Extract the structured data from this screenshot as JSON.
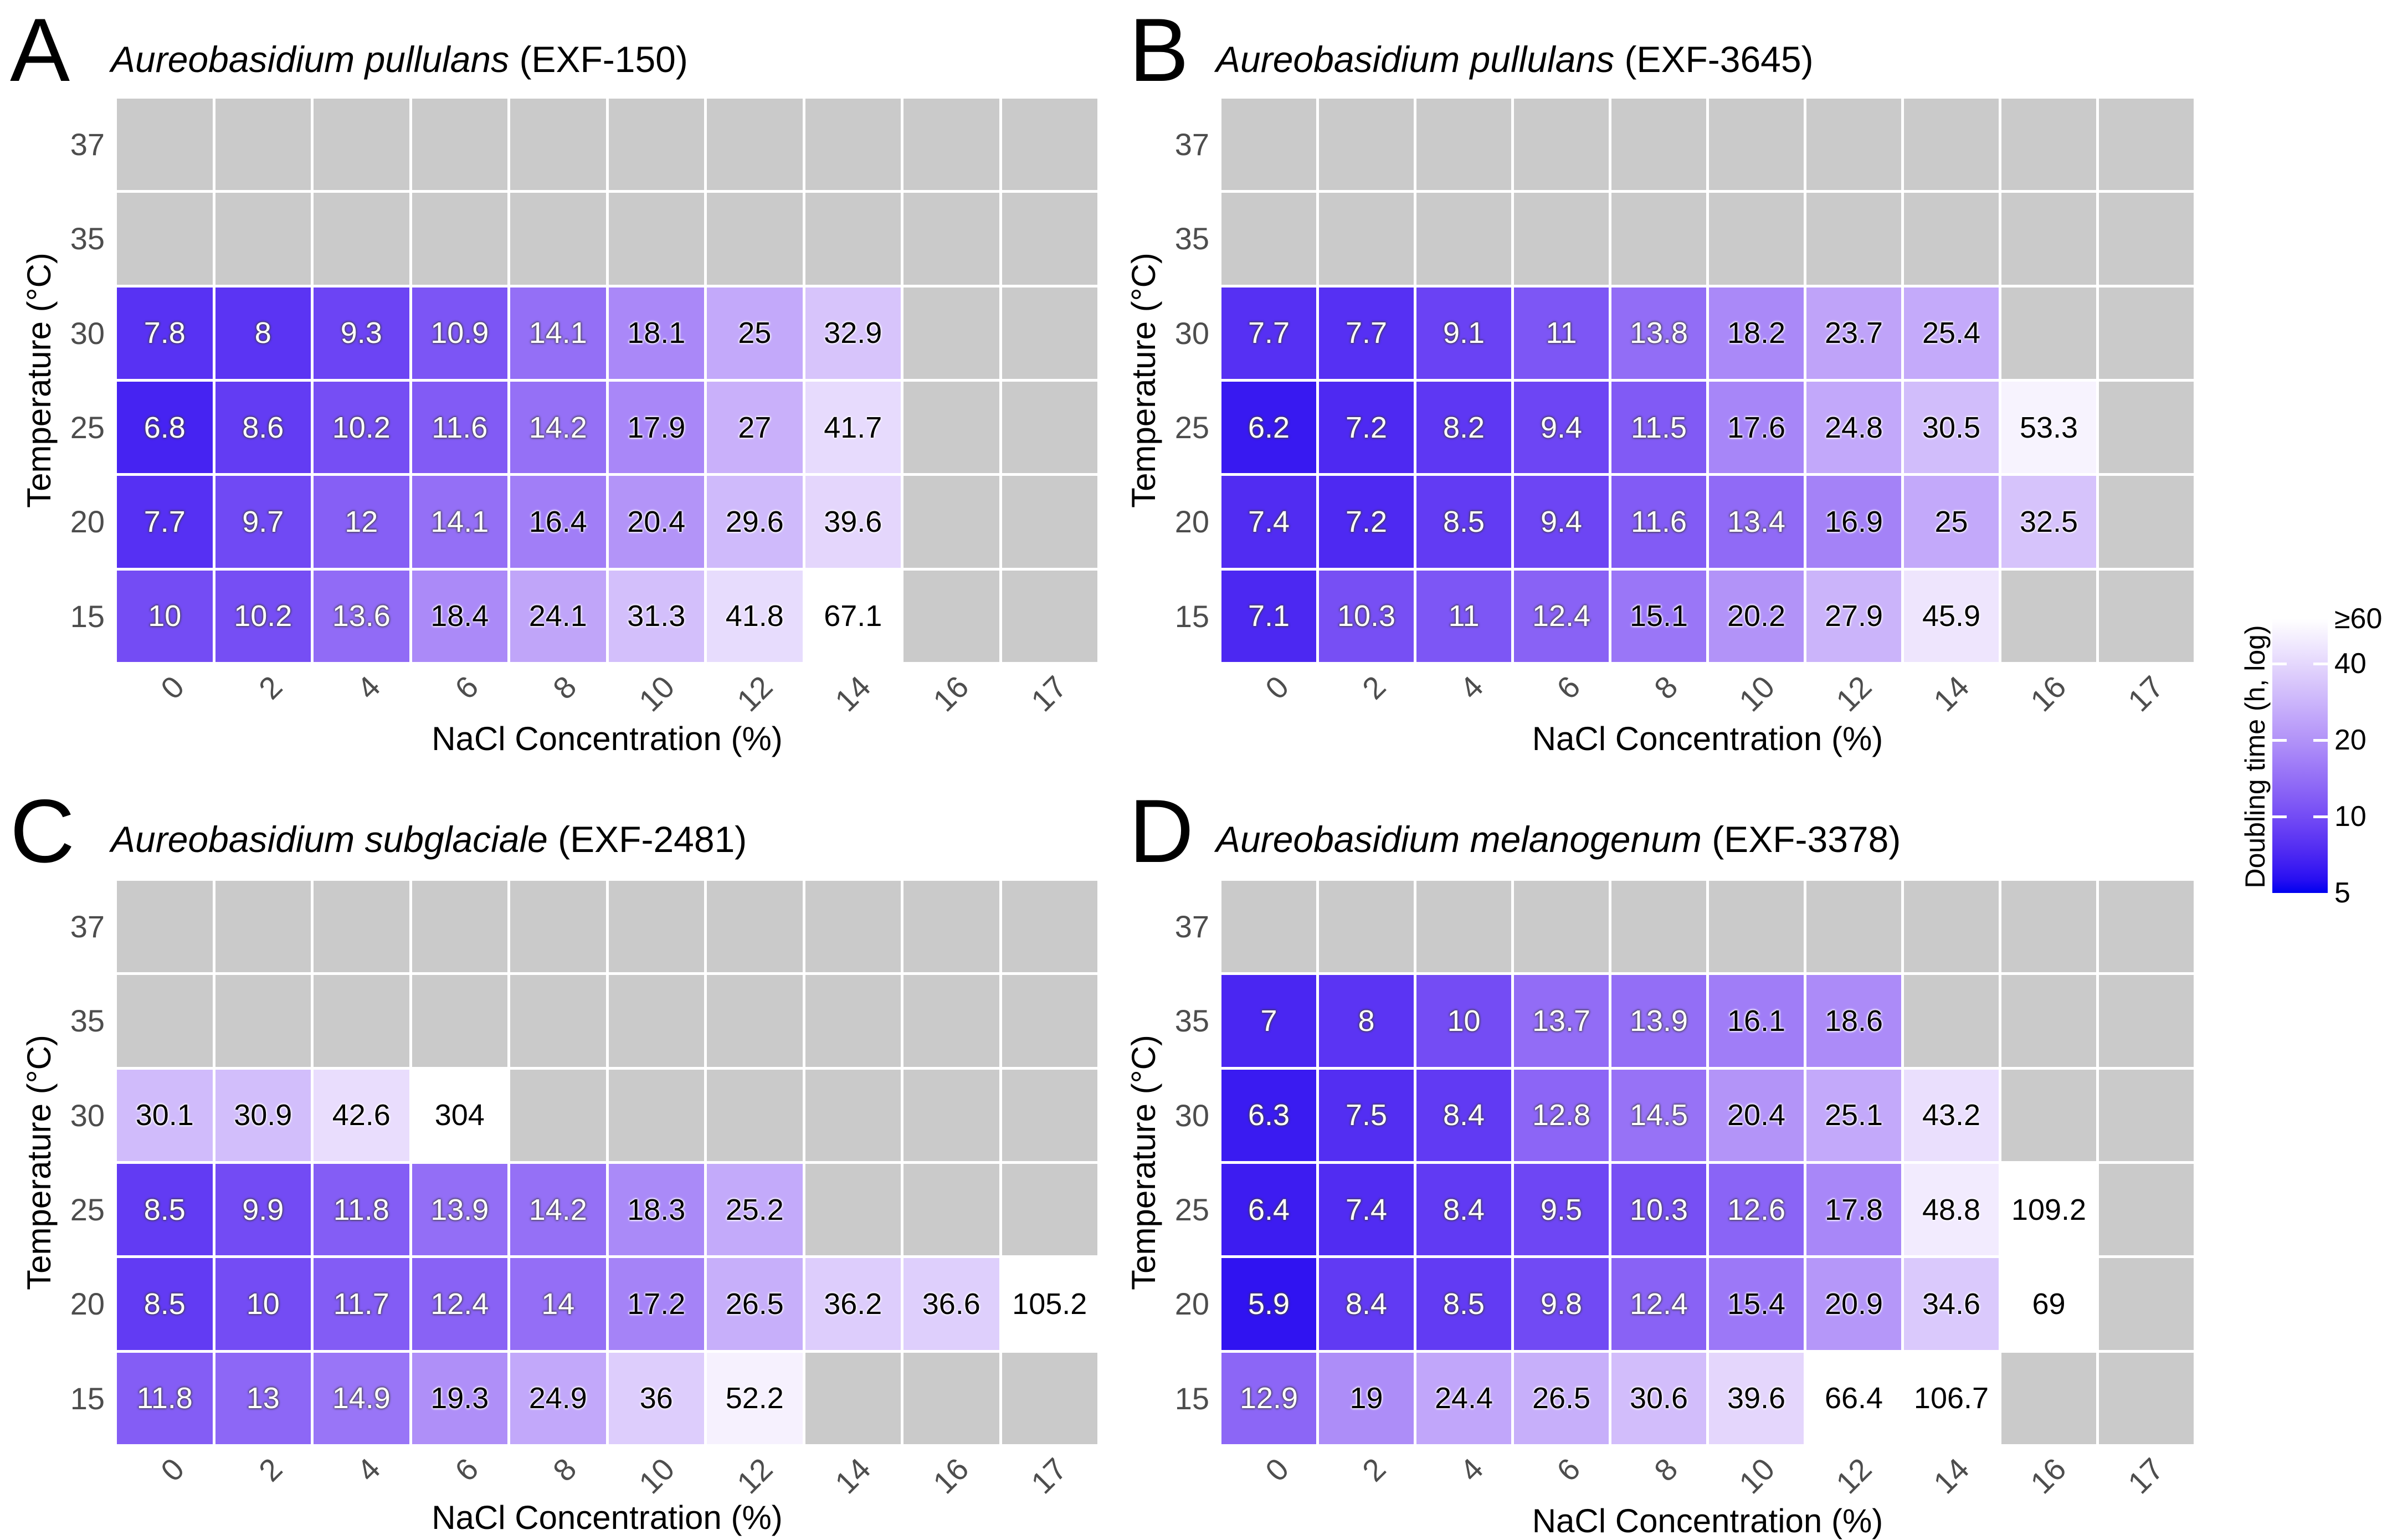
{
  "chart_data": {
    "type": "heatmap",
    "xlabel": "NaCl Concentration (%)",
    "ylabel": "Temperature (°C)",
    "x_categories": [
      "0",
      "2",
      "4",
      "6",
      "8",
      "10",
      "12",
      "14",
      "16",
      "17"
    ],
    "y_categories": [
      "37",
      "35",
      "30",
      "25",
      "20",
      "15"
    ],
    "value_unit": "hours",
    "text_color_threshold": 15,
    "legend": {
      "title": "Doubling time (h, log)",
      "scale": "log",
      "min": 5,
      "max": 60,
      "tick_labels": [
        "≥60",
        "40",
        "20",
        "10",
        "5"
      ],
      "tick_values": [
        60,
        40,
        20,
        10,
        5
      ],
      "notch_values": [
        40,
        20,
        10
      ]
    },
    "colors": {
      "low": "#0000F0",
      "high": "#FFFFFF",
      "no_growth": "#CACACA",
      "axis_tick_text": "#4D4D4D"
    },
    "panels": [
      {
        "label": "A",
        "species": "Aureobasidium pullulans",
        "strain": "(EXF-150)",
        "rows": [
          {
            "temp": "37",
            "cells": [
              null,
              null,
              null,
              null,
              null,
              null,
              null,
              null,
              null,
              null
            ]
          },
          {
            "temp": "35",
            "cells": [
              null,
              null,
              null,
              null,
              null,
              null,
              null,
              null,
              null,
              null
            ]
          },
          {
            "temp": "30",
            "cells": [
              "7.8",
              "8",
              "9.3",
              "10.9",
              "14.1",
              "18.1",
              "25",
              "32.9",
              null,
              null
            ]
          },
          {
            "temp": "25",
            "cells": [
              "6.8",
              "8.6",
              "10.2",
              "11.6",
              "14.2",
              "17.9",
              "27",
              "41.7",
              null,
              null
            ]
          },
          {
            "temp": "20",
            "cells": [
              "7.7",
              "9.7",
              "12",
              "14.1",
              "16.4",
              "20.4",
              "29.6",
              "39.6",
              null,
              null
            ]
          },
          {
            "temp": "15",
            "cells": [
              "10",
              "10.2",
              "13.6",
              "18.4",
              "24.1",
              "31.3",
              "41.8",
              "67.1",
              null,
              null
            ]
          }
        ]
      },
      {
        "label": "B",
        "species": "Aureobasidium pullulans",
        "strain": "(EXF-3645)",
        "rows": [
          {
            "temp": "37",
            "cells": [
              null,
              null,
              null,
              null,
              null,
              null,
              null,
              null,
              null,
              null
            ]
          },
          {
            "temp": "35",
            "cells": [
              null,
              null,
              null,
              null,
              null,
              null,
              null,
              null,
              null,
              null
            ]
          },
          {
            "temp": "30",
            "cells": [
              "7.7",
              "7.7",
              "9.1",
              "11",
              "13.8",
              "18.2",
              "23.7",
              "25.4",
              null,
              null
            ]
          },
          {
            "temp": "25",
            "cells": [
              "6.2",
              "7.2",
              "8.2",
              "9.4",
              "11.5",
              "17.6",
              "24.8",
              "30.5",
              "53.3",
              null
            ]
          },
          {
            "temp": "20",
            "cells": [
              "7.4",
              "7.2",
              "8.5",
              "9.4",
              "11.6",
              "13.4",
              "16.9",
              "25",
              "32.5",
              null
            ]
          },
          {
            "temp": "15",
            "cells": [
              "7.1",
              "10.3",
              "11",
              "12.4",
              "15.1",
              "20.2",
              "27.9",
              "45.9",
              null,
              null
            ]
          }
        ]
      },
      {
        "label": "C",
        "species": "Aureobasidium subglaciale",
        "strain": "(EXF-2481)",
        "rows": [
          {
            "temp": "37",
            "cells": [
              null,
              null,
              null,
              null,
              null,
              null,
              null,
              null,
              null,
              null
            ]
          },
          {
            "temp": "35",
            "cells": [
              null,
              null,
              null,
              null,
              null,
              null,
              null,
              null,
              null,
              null
            ]
          },
          {
            "temp": "30",
            "cells": [
              "30.1",
              "30.9",
              "42.6",
              "304",
              null,
              null,
              null,
              null,
              null,
              null
            ]
          },
          {
            "temp": "25",
            "cells": [
              "8.5",
              "9.9",
              "11.8",
              "13.9",
              "14.2",
              "18.3",
              "25.2",
              null,
              null,
              null
            ]
          },
          {
            "temp": "20",
            "cells": [
              "8.5",
              "10",
              "11.7",
              "12.4",
              "14",
              "17.2",
              "26.5",
              "36.2",
              "36.6",
              "105.2"
            ]
          },
          {
            "temp": "15",
            "cells": [
              "11.8",
              "13",
              "14.9",
              "19.3",
              "24.9",
              "36",
              "52.2",
              null,
              null,
              null
            ]
          }
        ]
      },
      {
        "label": "D",
        "species": "Aureobasidium melanogenum",
        "strain": "(EXF-3378)",
        "rows": [
          {
            "temp": "37",
            "cells": [
              null,
              null,
              null,
              null,
              null,
              null,
              null,
              null,
              null,
              null
            ]
          },
          {
            "temp": "35",
            "cells": [
              "7",
              "8",
              "10",
              "13.7",
              "13.9",
              "16.1",
              "18.6",
              null,
              null,
              null
            ]
          },
          {
            "temp": "30",
            "cells": [
              "6.3",
              "7.5",
              "8.4",
              "12.8",
              "14.5",
              "20.4",
              "25.1",
              "43.2",
              null,
              null
            ]
          },
          {
            "temp": "25",
            "cells": [
              "6.4",
              "7.4",
              "8.4",
              "9.5",
              "10.3",
              "12.6",
              "17.8",
              "48.8",
              "109.2",
              null
            ]
          },
          {
            "temp": "20",
            "cells": [
              "5.9",
              "8.4",
              "8.5",
              "9.8",
              "12.4",
              "15.4",
              "20.9",
              "34.6",
              "69",
              null
            ]
          },
          {
            "temp": "15",
            "cells": [
              "12.9",
              "19",
              "24.4",
              "26.5",
              "30.6",
              "39.6",
              "66.4",
              "106.7",
              null,
              null
            ]
          }
        ]
      }
    ]
  }
}
